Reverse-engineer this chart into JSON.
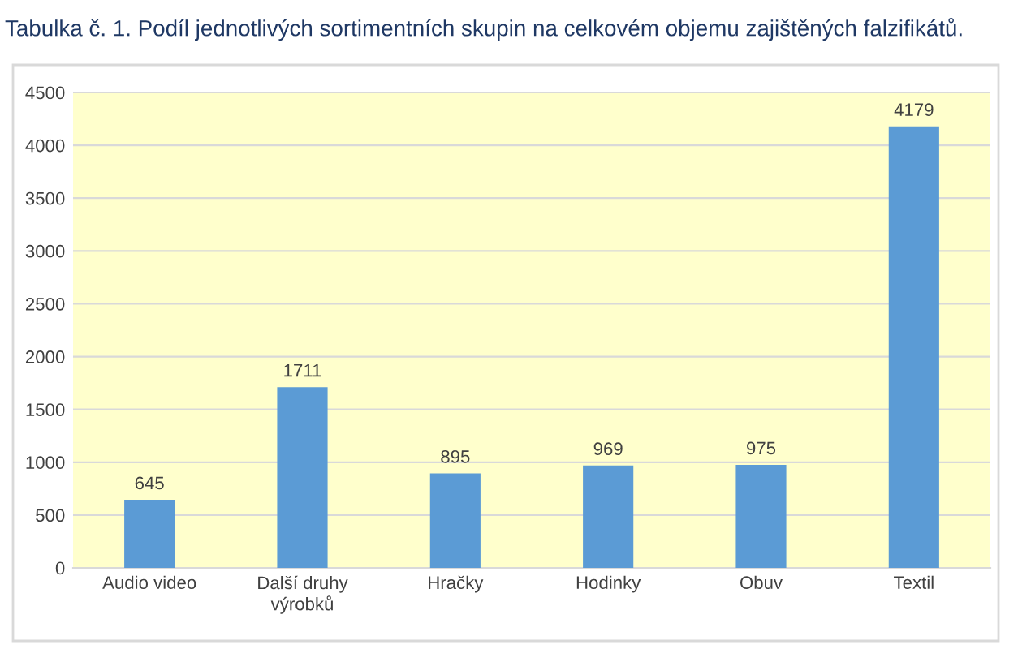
{
  "chart_data": {
    "type": "bar",
    "title": "Tabulka č. 1. Podíl jednotlivých sortimentních skupin na celkovém objemu zajištěných falzifikátů.",
    "categories": [
      "Audio video",
      "Další druhy\nvýrobků",
      "Hračky",
      "Hodinky",
      "Obuv",
      "Textil"
    ],
    "values": [
      645,
      1711,
      895,
      969,
      975,
      4179
    ],
    "color": "#5b9bd5",
    "data_labels": true,
    "ylim": [
      0,
      4500
    ],
    "yticks": [
      0,
      500,
      1000,
      1500,
      2000,
      2500,
      3000,
      3500,
      4000,
      4500
    ],
    "grid": "y"
  }
}
